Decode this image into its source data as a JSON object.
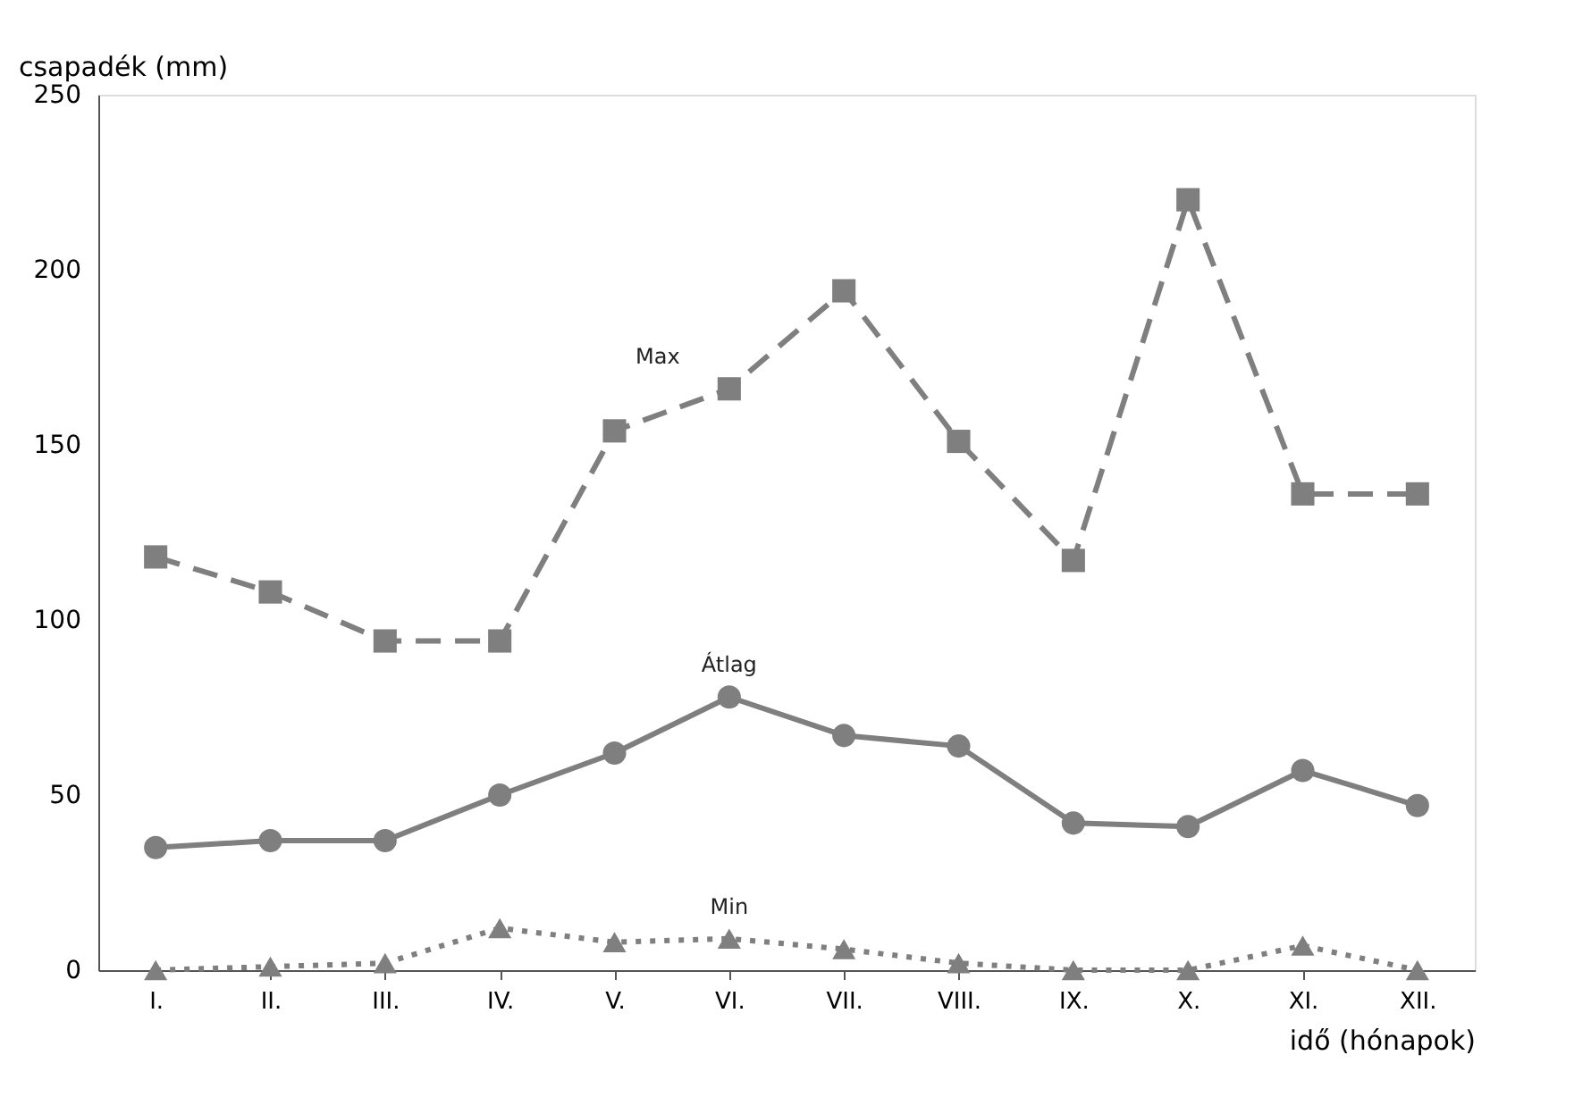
{
  "chart_data": {
    "type": "line",
    "xlabel": "idő (hónapok)",
    "ylabel": "csapadék (mm)",
    "categories": [
      "I.",
      "II.",
      "III.",
      "IV.",
      "V.",
      "VI.",
      "VII.",
      "VIII.",
      "IX.",
      "X.",
      "XI.",
      "XII."
    ],
    "series": [
      {
        "name": "Max",
        "color": "#7f7f7f",
        "marker": "square",
        "line_style": "dashed",
        "values": [
          118,
          108,
          94,
          94,
          154,
          166,
          194,
          151,
          117,
          220,
          136,
          136
        ]
      },
      {
        "name": "Átlag",
        "color": "#7f7f7f",
        "marker": "circle",
        "line_style": "solid",
        "values": [
          35,
          37,
          37,
          50,
          62,
          78,
          67,
          64,
          42,
          41,
          57,
          47
        ]
      },
      {
        "name": "Min",
        "color": "#7f7f7f",
        "marker": "triangle",
        "line_style": "dotted",
        "values": [
          0,
          1,
          2,
          12,
          8,
          9,
          6,
          2,
          0,
          0,
          7,
          0
        ]
      }
    ],
    "ylim": [
      0,
      250
    ],
    "yticks": [
      0,
      50,
      100,
      150,
      200,
      250
    ],
    "grid": false
  }
}
